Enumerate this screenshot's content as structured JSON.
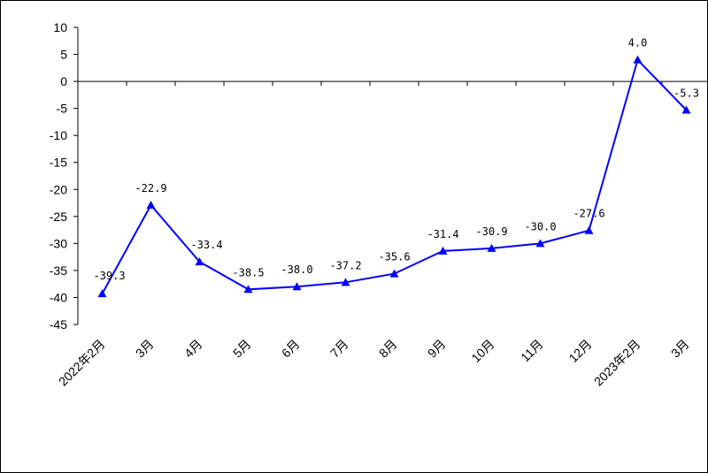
{
  "chart_data": {
    "type": "line",
    "title": "",
    "xlabel": "",
    "ylabel": "",
    "categories": [
      "2022年2月",
      "3月",
      "4月",
      "5月",
      "6月",
      "7月",
      "8月",
      "9月",
      "10月",
      "11月",
      "12月",
      "2023年2月",
      "3月"
    ],
    "series": [
      {
        "name": "",
        "values": [
          -39.3,
          -22.9,
          -33.4,
          -38.5,
          -38.0,
          -37.2,
          -35.6,
          -31.4,
          -30.9,
          -30.0,
          -27.6,
          4.0,
          -5.3
        ],
        "labels": [
          "-39.3",
          "-22.9",
          "-33.4",
          "-38.5",
          "-38.0",
          "-37.2",
          "-35.6",
          "-31.4",
          "-30.9",
          "-30.0",
          "-27.6",
          "4.0",
          "-5.3"
        ],
        "color": "#0000ff",
        "marker": "triangle"
      }
    ],
    "ylim": [
      -45,
      10
    ],
    "yticks": [
      10,
      5,
      0,
      -5,
      -10,
      -15,
      -20,
      -25,
      -30,
      -35,
      -40,
      -45
    ],
    "grid": false,
    "legend": "none"
  }
}
